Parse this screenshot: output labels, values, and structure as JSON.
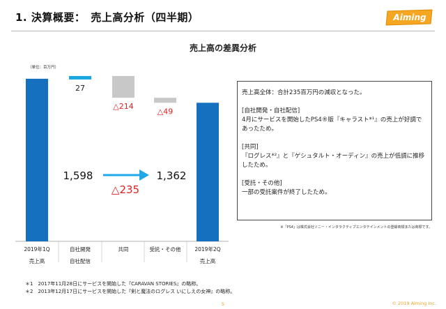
{
  "header": {
    "title": "1. 決算概要：　売上高分析（四半期）",
    "logo_text": "Aiming"
  },
  "chart_title": "売上高の差異分析",
  "unit_note": "（単位：百万円）",
  "colors": {
    "bar_main": "#1570c0",
    "bar_increase": "#1aa8e0",
    "bar_decrease": "#c8c8c8",
    "decrease_label": "#e02020",
    "arrow": "#20a8e8",
    "accent_orange": "#f0a020"
  },
  "chart_data": {
    "type": "bar",
    "subtype": "waterfall",
    "title": "売上高の差異分析",
    "ylabel": "（単位：百万円）",
    "categories": [
      [
        "2019年1Q",
        "売上高"
      ],
      [
        "自社開発",
        "自社配信"
      ],
      [
        "共同"
      ],
      [
        "受託・その他"
      ],
      [
        "2019年2Q",
        "売上高"
      ]
    ],
    "bars": [
      {
        "kind": "total",
        "start": 0,
        "end": 1598
      },
      {
        "kind": "increase",
        "start": 1598,
        "end": 1625,
        "label": "27"
      },
      {
        "kind": "decrease",
        "start": 1625,
        "end": 1411,
        "label": "△214"
      },
      {
        "kind": "decrease",
        "start": 1411,
        "end": 1362,
        "label": "△49"
      },
      {
        "kind": "total",
        "start": 0,
        "end": 1362
      }
    ],
    "start_value_label": "1,598",
    "end_value_label": "1,362",
    "total_change_label": "△235",
    "ylim": [
      0,
      1700
    ]
  },
  "info_box": {
    "paragraphs": [
      "売上高全体：合計235百万円の減収となった。",
      "[自社開発・自社配信]\n4月にサービスを開始したPS4®版『キャラスト*¹』の売上が好調であったため。",
      "[共同]\n『ログレス*²』と『ゲシュタルト・オーディン』の売上が低調に推移したため。",
      "[受託・その他]\n一部の受託案件が終了したため。"
    ]
  },
  "copyright_note": "※「PS4」は株式会社ソニー・インタラクティブエンタテインメントの登録商標または商標です。",
  "footnotes": [
    "＊1　2017年11月28日にサービスを開始した『CARAVAN STORIES』の略称。",
    "＊2　2013年12月17日にサービスを開始した『剣と魔法のログレス いにしえの女神』の略称。"
  ],
  "page_number": "5",
  "copyright": "© 2019 Aiming Inc."
}
